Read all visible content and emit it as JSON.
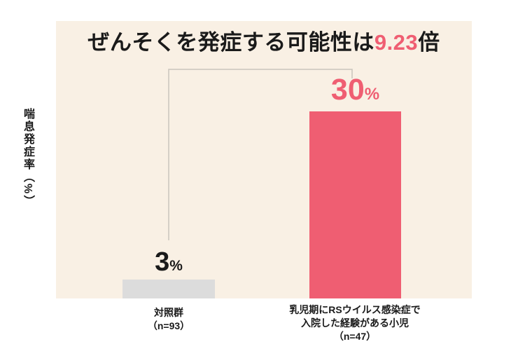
{
  "title": {
    "part1": "ぜんそくを発症する可能性は",
    "highlight": "9.23",
    "part2": "倍"
  },
  "ylabel": "喘息発症率（%）",
  "chart_data": {
    "type": "bar",
    "title": "ぜんそくを発症する可能性は9.23倍",
    "highlighted_ratio": "9.23倍",
    "ylabel": "喘息発症率（%）",
    "categories": [
      "対照群（n=93）",
      "乳児期にRSウイルス感染症で入院した経験がある小児（n=47）"
    ],
    "values": [
      3,
      30
    ],
    "unit": "%",
    "ylim": [
      0,
      33
    ],
    "grid": false,
    "legend": false,
    "bar_colors": [
      "#dcdcdc",
      "#ef5e72"
    ]
  },
  "bars": [
    {
      "value_number": "3",
      "value_unit": "%",
      "label_lines": [
        "対照群",
        "（n=93）"
      ]
    },
    {
      "value_number": "30",
      "value_unit": "%",
      "label_lines": [
        "乳児期にRSウイルス感染症で",
        "入院した経験がある小児",
        "（n=47）"
      ]
    }
  ],
  "colors": {
    "accent_pink": "#ef5e72",
    "bar_gray": "#dcdcdc",
    "panel_bg": "#f9f0e4",
    "text": "#1a1a1a",
    "bracket": "#c9c4bc",
    "page_bg": "#ffffff"
  }
}
